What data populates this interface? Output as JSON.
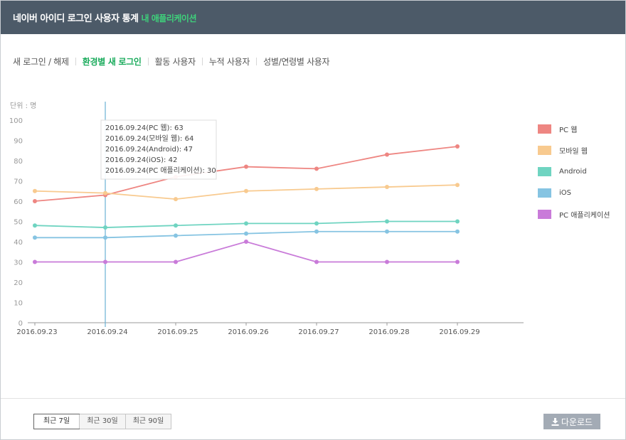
{
  "header": {
    "title": "네이버 아이디 로그인 사용자 통계",
    "subtitle": "내 애플리케이션"
  },
  "tabs": [
    {
      "label": "새 로그인 / 해제",
      "active": false
    },
    {
      "label": "환경별 새 로그인",
      "active": true
    },
    {
      "label": "활동 사용자",
      "active": false
    },
    {
      "label": "누적 사용자",
      "active": false
    },
    {
      "label": "성별/연령별 사용자",
      "active": false
    }
  ],
  "chart_data": {
    "type": "line",
    "unit_label": "단위 : 명",
    "categories": [
      "2016.09.23",
      "2016.09.24",
      "2016.09.25",
      "2016.09.26",
      "2016.09.27",
      "2016.09.28",
      "2016.09.29"
    ],
    "ylim": [
      0,
      100
    ],
    "yticks": [
      0,
      10,
      20,
      30,
      40,
      50,
      60,
      70,
      80,
      90,
      100
    ],
    "series": [
      {
        "name": "PC 웹",
        "color": "#ee8682",
        "values": [
          60,
          63,
          72,
          77,
          76,
          83,
          87
        ]
      },
      {
        "name": "모바일 웹",
        "color": "#f8ca8f",
        "values": [
          65,
          64,
          61,
          65,
          66,
          67,
          68
        ]
      },
      {
        "name": "Android",
        "color": "#6fd4c1",
        "values": [
          48,
          47,
          48,
          49,
          49,
          50,
          50
        ]
      },
      {
        "name": "iOS",
        "color": "#86c4e2",
        "values": [
          42,
          42,
          43,
          44,
          45,
          45,
          45
        ]
      },
      {
        "name": "PC 애플리케이션",
        "color": "#c97bd9",
        "values": [
          30,
          30,
          30,
          40,
          30,
          30,
          30
        ]
      }
    ],
    "highlight_index": 1,
    "tooltip_lines": [
      "2016.09.24(PC 웹): 63",
      "2016.09.24(모바일 웹): 64",
      "2016.09.24(Android): 47",
      "2016.09.24(iOS): 42",
      "2016.09.24(PC 애플리케이션): 30"
    ]
  },
  "footer": {
    "ranges": [
      {
        "label": "최근 7일",
        "active": true
      },
      {
        "label": "최근 30일",
        "active": false
      },
      {
        "label": "최근 90일",
        "active": false
      }
    ],
    "download_label": "다운로드"
  }
}
